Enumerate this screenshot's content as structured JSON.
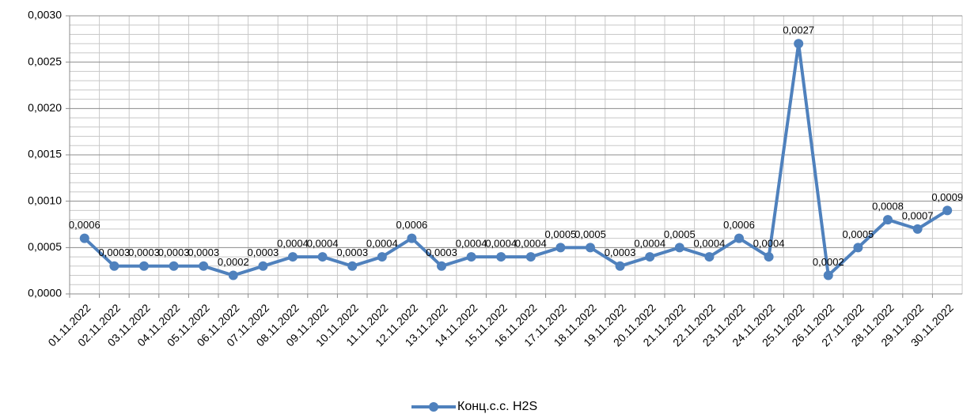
{
  "chart_data": {
    "type": "line",
    "categories": [
      "01.11.2022",
      "02.11.2022",
      "03.11.2022",
      "04.11.2022",
      "05.11.2022",
      "06.11.2022",
      "07.11.2022",
      "08.11.2022",
      "09.11.2022",
      "10.11.2022",
      "11.11.2022",
      "12.11.2022",
      "13.11.2022",
      "14.11.2022",
      "15.11.2022",
      "16.11.2022",
      "17.11.2022",
      "18.11.2022",
      "19.11.2022",
      "20.11.2022",
      "21.11.2022",
      "22.11.2022",
      "23.11.2022",
      "24.11.2022",
      "25.11.2022",
      "26.11.2022",
      "27.11.2022",
      "28.11.2022",
      "29.11.2022",
      "30.11.2022"
    ],
    "series": [
      {
        "name": "Конц.с.с. H2S",
        "color": "#4f81bd",
        "values": [
          0.0006,
          0.0003,
          0.0003,
          0.0003,
          0.0003,
          0.0002,
          0.0003,
          0.0004,
          0.0004,
          0.0003,
          0.0004,
          0.0006,
          0.0003,
          0.0004,
          0.0004,
          0.0004,
          0.0005,
          0.0005,
          0.0003,
          0.0004,
          0.0005,
          0.0004,
          0.0006,
          0.0004,
          0.0027,
          0.0002,
          0.0005,
          0.0008,
          0.0007,
          0.0009
        ],
        "value_labels": [
          "0,0006",
          "0,0003",
          "0,0003",
          "0,0003",
          "0,0003",
          "0,0002",
          "0,0003",
          "0,0004",
          "0,0004",
          "0,0003",
          "0,0004",
          "0,0006",
          "0,0003",
          "0,0004",
          "0,0004",
          "0,0004",
          "0,0005",
          "0,0005",
          "0,0003",
          "0,0004",
          "0,0005",
          "0,0004",
          "0,0006",
          "0,0004",
          "0,0027",
          "0,0002",
          "0,0005",
          "0,0008",
          "0,0007",
          "0,0009"
        ]
      }
    ],
    "ylim": [
      0,
      0.003
    ],
    "yticks": [
      {
        "value": 0,
        "label": "0,0000"
      },
      {
        "value": 0.0005,
        "label": "0,0005"
      },
      {
        "value": 0.001,
        "label": "0,0010"
      },
      {
        "value": 0.0015,
        "label": "0,0015"
      },
      {
        "value": 0.002,
        "label": "0,0020"
      },
      {
        "value": 0.0025,
        "label": "0,0025"
      },
      {
        "value": 0.003,
        "label": "0,0030"
      }
    ],
    "yminorticks": [
      0.0001,
      0.0002,
      0.0003,
      0.0004,
      0.0006,
      0.0007,
      0.0008,
      0.0009,
      0.0011,
      0.0012,
      0.0013,
      0.0014,
      0.0016,
      0.0017,
      0.0018,
      0.0019,
      0.0021,
      0.0022,
      0.0023,
      0.0024,
      0.0026,
      0.0027,
      0.0028,
      0.0029
    ],
    "grid": true,
    "legend": "bottom"
  }
}
